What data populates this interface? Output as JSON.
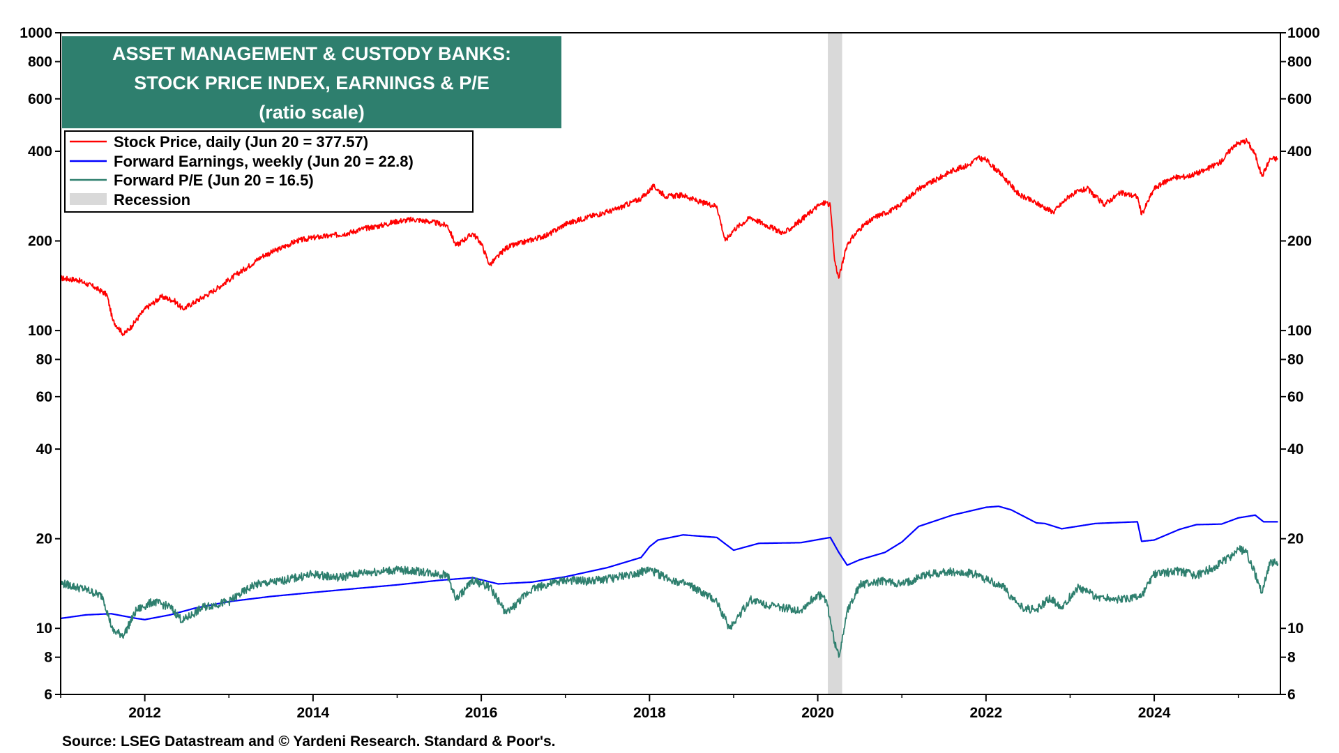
{
  "chart_data": {
    "type": "line",
    "title_lines": [
      "ASSET MANAGEMENT & CUSTODY BANKS:",
      "STOCK PRICE INDEX, EARNINGS & P/E",
      "(ratio scale)"
    ],
    "source": "Source: LSEG Datastream and © Yardeni Research. Standard & Poor's.",
    "y_scale": "log",
    "ylim": [
      6,
      1000
    ],
    "xlim": [
      2011.0,
      2025.5
    ],
    "grid": false,
    "legend_position": "top-left",
    "y_ticks": [
      1000,
      800,
      600,
      400,
      200,
      100,
      80,
      60,
      40,
      20,
      10,
      8,
      6
    ],
    "y_tick_labels": [
      "1000",
      "800",
      "600",
      "400",
      "200",
      "100",
      "80",
      "60",
      "40",
      "20",
      "10",
      "8",
      "6"
    ],
    "x_ticks": [
      2012,
      2014,
      2016,
      2018,
      2020,
      2022,
      2024
    ],
    "x_tick_labels": [
      "2012",
      "2014",
      "2016",
      "2018",
      "2020",
      "2022",
      "2024"
    ],
    "recession_label": "Recession",
    "recession_periods": [
      [
        2020.12,
        2020.29
      ]
    ],
    "recession_color": "#d9d9d9",
    "series": [
      {
        "name": "Stock Price, daily (Jun 20 = 377.57)",
        "color": "#ff0000",
        "x": [
          2011.0,
          2011.2,
          2011.4,
          2011.55,
          2011.62,
          2011.75,
          2011.85,
          2012.0,
          2012.2,
          2012.35,
          2012.45,
          2012.6,
          2012.8,
          2013.0,
          2013.2,
          2013.4,
          2013.6,
          2013.8,
          2014.0,
          2014.2,
          2014.4,
          2014.6,
          2014.8,
          2015.0,
          2015.2,
          2015.4,
          2015.6,
          2015.7,
          2015.9,
          2016.0,
          2016.1,
          2016.3,
          2016.5,
          2016.8,
          2017.0,
          2017.3,
          2017.6,
          2017.9,
          2018.05,
          2018.2,
          2018.4,
          2018.6,
          2018.8,
          2018.9,
          2019.0,
          2019.2,
          2019.4,
          2019.6,
          2019.8,
          2020.0,
          2020.1,
          2020.15,
          2020.2,
          2020.25,
          2020.35,
          2020.5,
          2020.7,
          2020.9,
          2021.0,
          2021.2,
          2021.4,
          2021.6,
          2021.8,
          2021.9,
          2022.0,
          2022.2,
          2022.4,
          2022.6,
          2022.8,
          2023.0,
          2023.2,
          2023.4,
          2023.6,
          2023.8,
          2023.85,
          2024.0,
          2024.2,
          2024.4,
          2024.6,
          2024.8,
          2024.95,
          2025.1,
          2025.2,
          2025.28,
          2025.38,
          2025.47
        ],
        "values": [
          150,
          148,
          140,
          132,
          108,
          97,
          104,
          118,
          130,
          126,
          118,
          125,
          135,
          148,
          162,
          178,
          188,
          200,
          205,
          208,
          212,
          220,
          225,
          233,
          236,
          232,
          225,
          193,
          212,
          196,
          166,
          190,
          198,
          210,
          228,
          242,
          255,
          278,
          305,
          282,
          285,
          270,
          262,
          200,
          218,
          240,
          225,
          212,
          235,
          262,
          270,
          262,
          172,
          150,
          195,
          220,
          242,
          255,
          268,
          300,
          320,
          345,
          360,
          380,
          375,
          330,
          285,
          268,
          250,
          285,
          300,
          265,
          290,
          282,
          245,
          300,
          325,
          330,
          345,
          370,
          420,
          435,
          390,
          330,
          378,
          377.57
        ]
      },
      {
        "name": "Forward Earnings, weekly (Jun 20 = 22.8)",
        "color": "#0000ff",
        "x": [
          2011.0,
          2011.3,
          2011.6,
          2011.9,
          2012.0,
          2012.3,
          2012.6,
          2013.0,
          2013.5,
          2014.0,
          2014.5,
          2015.0,
          2015.5,
          2015.9,
          2016.2,
          2016.6,
          2017.0,
          2017.5,
          2017.9,
          2018.0,
          2018.1,
          2018.4,
          2018.8,
          2019.0,
          2019.3,
          2019.8,
          2020.15,
          2020.25,
          2020.35,
          2020.5,
          2020.8,
          2021.0,
          2021.2,
          2021.6,
          2022.0,
          2022.15,
          2022.3,
          2022.6,
          2022.7,
          2022.9,
          2023.3,
          2023.8,
          2023.85,
          2024.0,
          2024.3,
          2024.5,
          2024.8,
          2025.0,
          2025.2,
          2025.3,
          2025.47
        ],
        "values": [
          10.8,
          11.1,
          11.2,
          10.8,
          10.7,
          11.1,
          11.7,
          12.3,
          12.8,
          13.2,
          13.6,
          14.0,
          14.5,
          14.8,
          14.1,
          14.3,
          14.9,
          16.0,
          17.3,
          18.8,
          19.8,
          20.6,
          20.2,
          18.3,
          19.3,
          19.4,
          20.2,
          18.0,
          16.3,
          17.0,
          18.0,
          19.5,
          22.0,
          24.0,
          25.5,
          25.7,
          25.0,
          22.6,
          22.5,
          21.6,
          22.5,
          22.8,
          19.6,
          19.8,
          21.5,
          22.3,
          22.4,
          23.5,
          24.0,
          22.8,
          22.8
        ]
      },
      {
        "name": "Forward P/E (Jun 20 = 16.5)",
        "color": "#2e7f6e",
        "x": [
          2011.0,
          2011.3,
          2011.5,
          2011.62,
          2011.75,
          2011.9,
          2012.1,
          2012.3,
          2012.45,
          2012.7,
          2013.0,
          2013.3,
          2013.6,
          2014.0,
          2014.3,
          2014.6,
          2015.0,
          2015.3,
          2015.6,
          2015.7,
          2015.9,
          2016.1,
          2016.3,
          2016.6,
          2017.0,
          2017.3,
          2017.6,
          2018.0,
          2018.2,
          2018.5,
          2018.8,
          2018.95,
          2019.2,
          2019.5,
          2019.8,
          2020.0,
          2020.1,
          2020.2,
          2020.25,
          2020.35,
          2020.5,
          2020.8,
          2021.0,
          2021.3,
          2021.6,
          2021.9,
          2022.0,
          2022.2,
          2022.4,
          2022.6,
          2022.75,
          2022.9,
          2023.1,
          2023.3,
          2023.6,
          2023.85,
          2024.0,
          2024.3,
          2024.5,
          2024.7,
          2024.9,
          2025.0,
          2025.1,
          2025.28,
          2025.38,
          2025.47
        ],
        "values": [
          14.2,
          13.5,
          12.8,
          9.8,
          9.5,
          11.5,
          12.3,
          11.8,
          10.6,
          11.8,
          12.3,
          14.0,
          14.4,
          15.2,
          14.8,
          15.4,
          15.7,
          15.5,
          15.1,
          12.5,
          14.5,
          13.8,
          11.2,
          13.6,
          14.5,
          14.4,
          14.8,
          15.7,
          14.8,
          13.8,
          12.3,
          10.0,
          12.5,
          11.8,
          11.5,
          13.0,
          12.5,
          9.0,
          8.0,
          11.5,
          14.0,
          14.4,
          14.0,
          15.2,
          15.5,
          15.2,
          14.6,
          13.8,
          11.8,
          11.5,
          12.6,
          11.8,
          13.8,
          12.8,
          12.5,
          12.8,
          15.2,
          15.6,
          15.0,
          16.0,
          17.3,
          18.5,
          18.0,
          13.2,
          16.8,
          16.5
        ]
      }
    ]
  }
}
